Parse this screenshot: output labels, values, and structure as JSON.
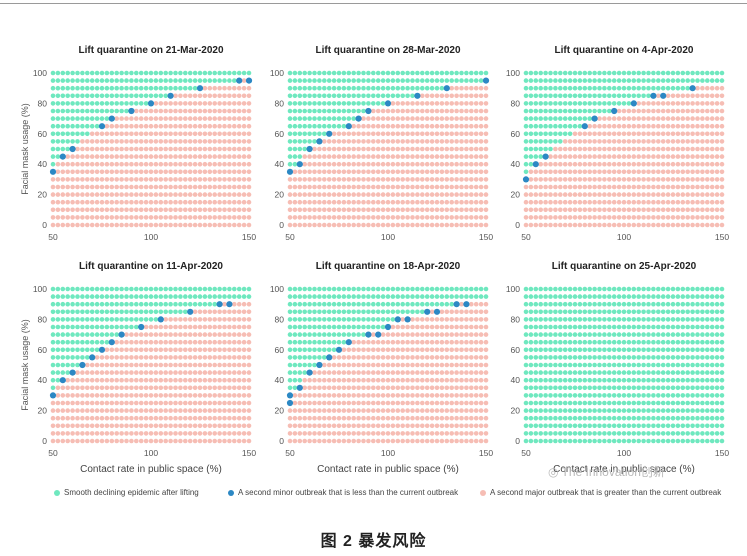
{
  "colors": {
    "smooth": "#6fe8bf",
    "minor": "#2c88c4",
    "major": "#f6bdb4",
    "axis": "#555555"
  },
  "shared_axes": {
    "xlabel": "Contact  rate in public space (%)",
    "ylabel": "Facial mask usage (%)",
    "x_ticks": [
      "50",
      "100",
      "150"
    ],
    "y_ticks": [
      "0",
      "20",
      "40",
      "60",
      "80",
      "100"
    ]
  },
  "chart_data": [
    {
      "type": "scatter",
      "title": "Lift quarantine on 21-Mar-2020",
      "xlim": [
        50,
        150
      ],
      "ylim": [
        0,
        100
      ],
      "boundary": [
        [
          50,
          35
        ],
        [
          55,
          45
        ],
        [
          60,
          50
        ],
        [
          70,
          60
        ],
        [
          75,
          65
        ],
        [
          80,
          70
        ],
        [
          90,
          75
        ],
        [
          100,
          80
        ],
        [
          110,
          85
        ],
        [
          125,
          90
        ],
        [
          135,
          92
        ],
        [
          145,
          95
        ],
        [
          150,
          95
        ]
      ],
      "minor_points": [
        [
          50,
          35
        ],
        [
          55,
          45
        ],
        [
          60,
          50
        ],
        [
          75,
          65
        ],
        [
          80,
          70
        ],
        [
          90,
          75
        ],
        [
          100,
          80
        ],
        [
          110,
          85
        ],
        [
          125,
          90
        ],
        [
          145,
          95
        ],
        [
          150,
          95
        ]
      ]
    },
    {
      "type": "scatter",
      "title": "Lift quarantine on 28-Mar-2020",
      "xlim": [
        50,
        150
      ],
      "ylim": [
        0,
        100
      ],
      "boundary": [
        [
          50,
          35
        ],
        [
          55,
          40
        ],
        [
          60,
          50
        ],
        [
          65,
          55
        ],
        [
          70,
          60
        ],
        [
          80,
          65
        ],
        [
          85,
          70
        ],
        [
          90,
          75
        ],
        [
          100,
          80
        ],
        [
          115,
          85
        ],
        [
          130,
          90
        ],
        [
          150,
          95
        ]
      ],
      "minor_points": [
        [
          50,
          35
        ],
        [
          55,
          40
        ],
        [
          60,
          50
        ],
        [
          65,
          55
        ],
        [
          70,
          60
        ],
        [
          80,
          65
        ],
        [
          85,
          70
        ],
        [
          90,
          75
        ],
        [
          100,
          80
        ],
        [
          115,
          85
        ],
        [
          130,
          90
        ],
        [
          150,
          95
        ]
      ]
    },
    {
      "type": "scatter",
      "title": "Lift quarantine on 4-Apr-2020",
      "xlim": [
        50,
        150
      ],
      "ylim": [
        0,
        100
      ],
      "boundary": [
        [
          50,
          30
        ],
        [
          55,
          40
        ],
        [
          60,
          45
        ],
        [
          70,
          55
        ],
        [
          80,
          65
        ],
        [
          85,
          70
        ],
        [
          95,
          75
        ],
        [
          105,
          80
        ],
        [
          115,
          85
        ],
        [
          125,
          88
        ],
        [
          135,
          90
        ],
        [
          150,
          92
        ]
      ],
      "minor_points": [
        [
          50,
          30
        ],
        [
          55,
          40
        ],
        [
          60,
          45
        ],
        [
          80,
          65
        ],
        [
          85,
          70
        ],
        [
          95,
          75
        ],
        [
          105,
          80
        ],
        [
          115,
          85
        ],
        [
          120,
          85
        ],
        [
          135,
          90
        ]
      ]
    },
    {
      "type": "scatter",
      "title": "Lift quarantine on 11-Apr-2020",
      "xlim": [
        50,
        150
      ],
      "ylim": [
        0,
        100
      ],
      "boundary": [
        [
          50,
          30
        ],
        [
          55,
          40
        ],
        [
          60,
          45
        ],
        [
          65,
          50
        ],
        [
          70,
          55
        ],
        [
          75,
          60
        ],
        [
          80,
          65
        ],
        [
          85,
          70
        ],
        [
          95,
          75
        ],
        [
          105,
          80
        ],
        [
          120,
          85
        ],
        [
          135,
          90
        ],
        [
          150,
          92
        ]
      ],
      "minor_points": [
        [
          50,
          30
        ],
        [
          55,
          40
        ],
        [
          60,
          45
        ],
        [
          65,
          50
        ],
        [
          70,
          55
        ],
        [
          75,
          60
        ],
        [
          80,
          65
        ],
        [
          85,
          70
        ],
        [
          95,
          75
        ],
        [
          105,
          80
        ],
        [
          120,
          85
        ],
        [
          135,
          90
        ],
        [
          140,
          90
        ]
      ]
    },
    {
      "type": "scatter",
      "title": "Lift quarantine on 18-Apr-2020",
      "xlim": [
        50,
        150
      ],
      "ylim": [
        0,
        100
      ],
      "boundary": [
        [
          50,
          25
        ],
        [
          55,
          35
        ],
        [
          60,
          45
        ],
        [
          65,
          50
        ],
        [
          70,
          55
        ],
        [
          75,
          60
        ],
        [
          80,
          65
        ],
        [
          90,
          70
        ],
        [
          100,
          75
        ],
        [
          105,
          80
        ],
        [
          120,
          85
        ],
        [
          135,
          90
        ],
        [
          150,
          92
        ]
      ],
      "minor_points": [
        [
          50,
          25
        ],
        [
          50,
          30
        ],
        [
          55,
          35
        ],
        [
          60,
          45
        ],
        [
          65,
          50
        ],
        [
          70,
          55
        ],
        [
          75,
          60
        ],
        [
          80,
          65
        ],
        [
          90,
          70
        ],
        [
          95,
          70
        ],
        [
          100,
          75
        ],
        [
          105,
          80
        ],
        [
          110,
          80
        ],
        [
          120,
          85
        ],
        [
          125,
          85
        ],
        [
          135,
          90
        ],
        [
          140,
          90
        ]
      ]
    },
    {
      "type": "scatter",
      "title": "Lift quarantine on 25-Apr-2020",
      "xlim": [
        50,
        150
      ],
      "ylim": [
        0,
        100
      ],
      "boundary": [
        [
          50,
          -10
        ],
        [
          150,
          -10
        ]
      ],
      "minor_points": []
    }
  ],
  "legend": [
    {
      "label": "Smooth declining epidemic after lifting",
      "color": "#6fe8bf"
    },
    {
      "label": "A second minor outbreak that is less than the current outbreak",
      "color": "#2c88c4"
    },
    {
      "label": "A second major outbreak that is greater than the current outbreak",
      "color": "#f6bdb4"
    }
  ],
  "watermark": {
    "icon": "wechat-icon",
    "text": "The Innovation创新"
  },
  "caption": "图 2 暴发风险"
}
